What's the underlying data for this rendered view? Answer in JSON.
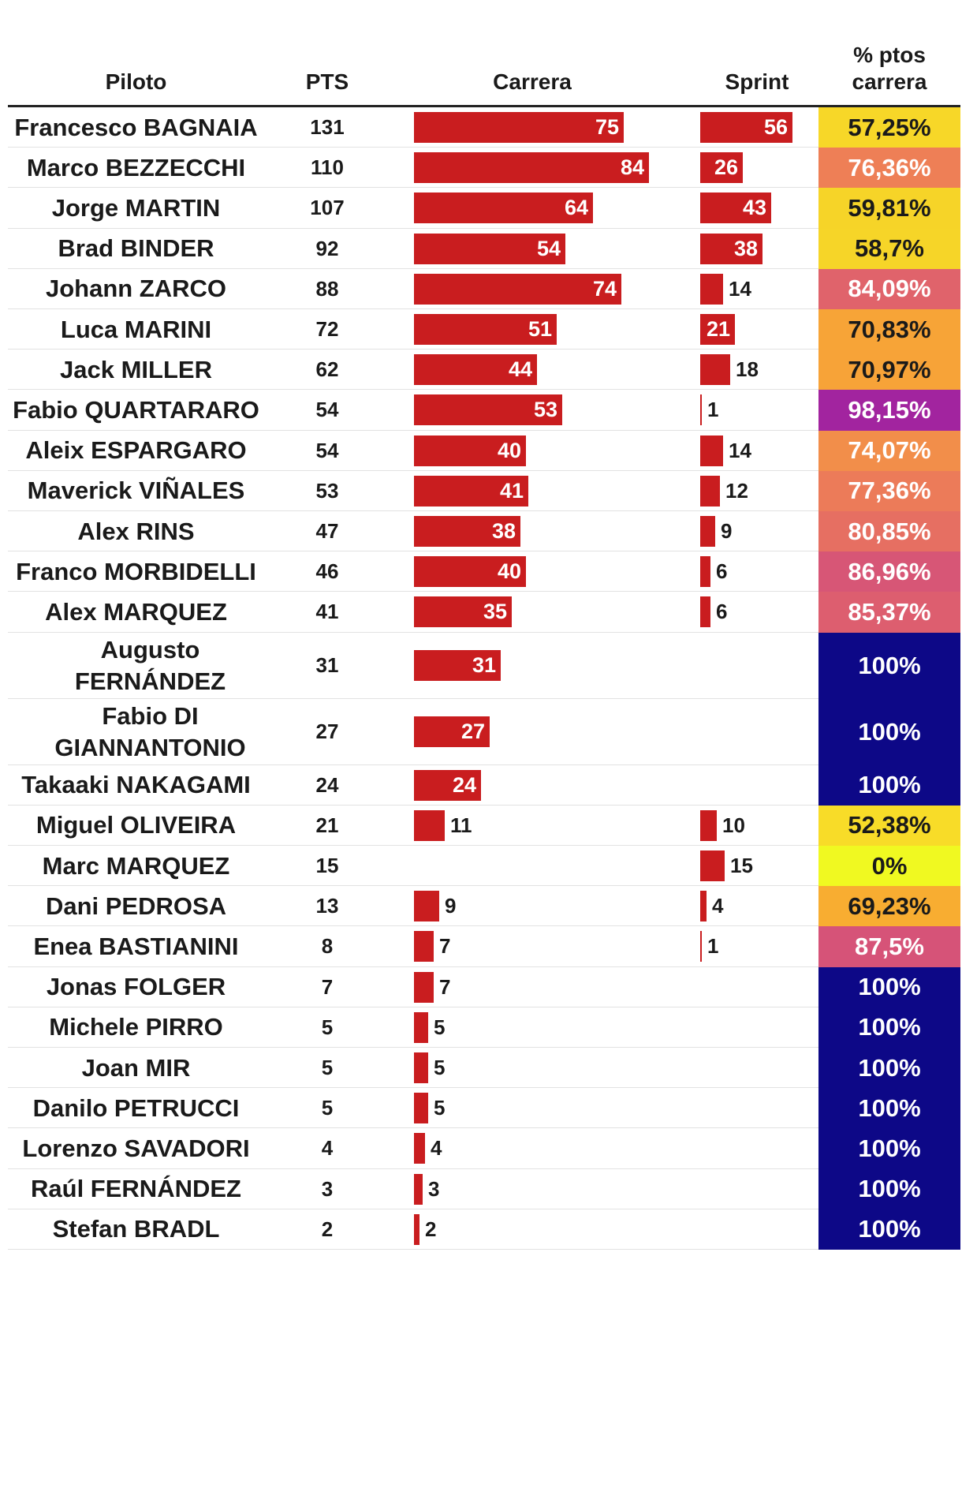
{
  "header": {
    "col_name": "Piloto",
    "col_pts": "PTS",
    "col_race": "Carrera",
    "col_sprint": "Sprint",
    "col_pct": "% ptos\ncarrera"
  },
  "chart_data": {
    "type": "table",
    "columns": [
      "Piloto",
      "PTS",
      "Carrera",
      "Sprint",
      "% ptos carrera"
    ],
    "race_axis_max": 84,
    "sprint_axis_max": 56,
    "bar_color": "#c91d1f",
    "rows": [
      {
        "name": "Francesco BAGNAIA",
        "pts": "131",
        "race": 75,
        "sprint": 56,
        "pct": "57,25%",
        "pct_value": 57.25
      },
      {
        "name": "Marco BEZZECCHI",
        "pts": "110",
        "race": 84,
        "sprint": 26,
        "pct": "76,36%",
        "pct_value": 76.36
      },
      {
        "name": "Jorge MARTIN",
        "pts": "107",
        "race": 64,
        "sprint": 43,
        "pct": "59,81%",
        "pct_value": 59.81
      },
      {
        "name": "Brad BINDER",
        "pts": "92",
        "race": 54,
        "sprint": 38,
        "pct": "58,7%",
        "pct_value": 58.7
      },
      {
        "name": "Johann ZARCO",
        "pts": "88",
        "race": 74,
        "sprint": 14,
        "pct": "84,09%",
        "pct_value": 84.09
      },
      {
        "name": "Luca MARINI",
        "pts": "72",
        "race": 51,
        "sprint": 21,
        "pct": "70,83%",
        "pct_value": 70.83
      },
      {
        "name": "Jack MILLER",
        "pts": "62",
        "race": 44,
        "sprint": 18,
        "pct": "70,97%",
        "pct_value": 70.97
      },
      {
        "name": "Fabio QUARTARARO",
        "pts": "54",
        "race": 53,
        "sprint": 1,
        "pct": "98,15%",
        "pct_value": 98.15
      },
      {
        "name": "Aleix ESPARGARO",
        "pts": "54",
        "race": 40,
        "sprint": 14,
        "pct": "74,07%",
        "pct_value": 74.07
      },
      {
        "name": "Maverick VIÑALES",
        "pts": "53",
        "race": 41,
        "sprint": 12,
        "pct": "77,36%",
        "pct_value": 77.36
      },
      {
        "name": "Alex RINS",
        "pts": "47",
        "race": 38,
        "sprint": 9,
        "pct": "80,85%",
        "pct_value": 80.85
      },
      {
        "name": "Franco MORBIDELLI",
        "pts": "46",
        "race": 40,
        "sprint": 6,
        "pct": "86,96%",
        "pct_value": 86.96
      },
      {
        "name": "Alex MARQUEZ",
        "pts": "41",
        "race": 35,
        "sprint": 6,
        "pct": "85,37%",
        "pct_value": 85.37
      },
      {
        "name": "Augusto FERNÁNDEZ",
        "pts": "31",
        "race": 31,
        "sprint": null,
        "pct": "100%",
        "pct_value": 100
      },
      {
        "name": "Fabio DI GIANNANTONIO",
        "pts": "27",
        "race": 27,
        "sprint": null,
        "pct": "100%",
        "pct_value": 100
      },
      {
        "name": "Takaaki NAKAGAMI",
        "pts": "24",
        "race": 24,
        "sprint": null,
        "pct": "100%",
        "pct_value": 100
      },
      {
        "name": "Miguel OLIVEIRA",
        "pts": "21",
        "race": 11,
        "sprint": 10,
        "pct": "52,38%",
        "pct_value": 52.38
      },
      {
        "name": "Marc MARQUEZ",
        "pts": "15",
        "race": null,
        "sprint": 15,
        "pct": "0%",
        "pct_value": 0
      },
      {
        "name": "Dani PEDROSA",
        "pts": "13",
        "race": 9,
        "sprint": 4,
        "pct": "69,23%",
        "pct_value": 69.23
      },
      {
        "name": "Enea BASTIANINI",
        "pts": "8",
        "race": 7,
        "sprint": 1,
        "pct": "87,5%",
        "pct_value": 87.5
      },
      {
        "name": "Jonas FOLGER",
        "pts": "7",
        "race": 7,
        "sprint": null,
        "pct": "100%",
        "pct_value": 100
      },
      {
        "name": "Michele PIRRO",
        "pts": "5",
        "race": 5,
        "sprint": null,
        "pct": "100%",
        "pct_value": 100
      },
      {
        "name": "Joan MIR",
        "pts": "5",
        "race": 5,
        "sprint": null,
        "pct": "100%",
        "pct_value": 100
      },
      {
        "name": "Danilo PETRUCCI",
        "pts": "5",
        "race": 5,
        "sprint": null,
        "pct": "100%",
        "pct_value": 100
      },
      {
        "name": "Lorenzo SAVADORI",
        "pts": "4",
        "race": 4,
        "sprint": null,
        "pct": "100%",
        "pct_value": 100
      },
      {
        "name": "Raúl FERNÁNDEZ",
        "pts": "3",
        "race": 3,
        "sprint": null,
        "pct": "100%",
        "pct_value": 100
      },
      {
        "name": "Stefan BRADL",
        "pts": "2",
        "race": 2,
        "sprint": null,
        "pct": "100%",
        "pct_value": 100
      }
    ]
  }
}
